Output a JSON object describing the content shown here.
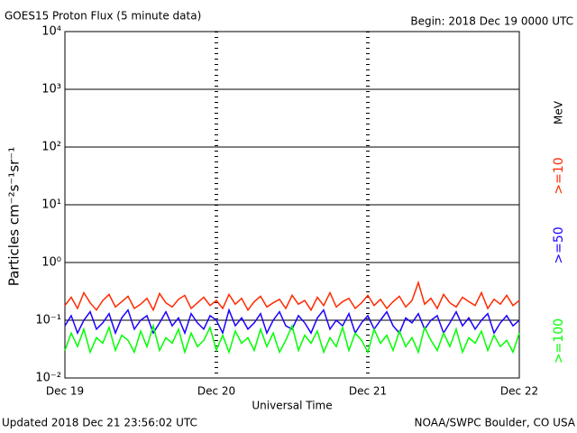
{
  "chart_data": {
    "type": "line",
    "title": "GOES15 Proton Flux (5 minute data)",
    "subtitle": "Begin: 2018 Dec 19 0000 UTC",
    "x_label": "Universal Time",
    "y_label": "Particles cm⁻²s⁻¹sr⁻¹",
    "legend_unit": "MeV",
    "footer_left": "Updated 2018 Dec 21 23:56:02 UTC",
    "footer_right": "NOAA/SWPC Boulder, CO USA",
    "log_y": true,
    "grid": true,
    "xlim": [
      0,
      72
    ],
    "xticks": [
      {
        "value": 0,
        "label": "Dec 19"
      },
      {
        "value": 24,
        "label": "Dec 20"
      },
      {
        "value": 48,
        "label": "Dec 21"
      },
      {
        "value": 72,
        "label": "Dec 22"
      }
    ],
    "ylim": [
      0.01,
      10000
    ],
    "yticks": [
      {
        "value": 0.01,
        "label": "10⁻²"
      },
      {
        "value": 0.1,
        "label": "10⁻¹"
      },
      {
        "value": 1,
        "label": "10⁰"
      },
      {
        "value": 10,
        "label": "10¹"
      },
      {
        "value": 100,
        "label": "10²"
      },
      {
        "value": 1000,
        "label": "10³"
      },
      {
        "value": 10000,
        "label": "10⁴"
      }
    ],
    "x": [
      0,
      1,
      2,
      3,
      4,
      5,
      6,
      7,
      8,
      9,
      10,
      11,
      12,
      13,
      14,
      15,
      16,
      17,
      18,
      19,
      20,
      21,
      22,
      23,
      24,
      25,
      26,
      27,
      28,
      29,
      30,
      31,
      32,
      33,
      34,
      35,
      36,
      37,
      38,
      39,
      40,
      41,
      42,
      43,
      44,
      45,
      46,
      47,
      48,
      49,
      50,
      51,
      52,
      53,
      54,
      55,
      56,
      57,
      58,
      59,
      60,
      61,
      62,
      63,
      64,
      65,
      66,
      67,
      68,
      69,
      70,
      71,
      72
    ],
    "series": [
      {
        "name": ">=10",
        "color": "#ff2a00",
        "values": [
          0.18,
          0.25,
          0.16,
          0.3,
          0.2,
          0.15,
          0.22,
          0.28,
          0.17,
          0.21,
          0.26,
          0.16,
          0.19,
          0.24,
          0.15,
          0.29,
          0.2,
          0.17,
          0.23,
          0.27,
          0.16,
          0.2,
          0.25,
          0.18,
          0.22,
          0.16,
          0.28,
          0.19,
          0.24,
          0.15,
          0.21,
          0.26,
          0.17,
          0.2,
          0.23,
          0.16,
          0.27,
          0.19,
          0.22,
          0.15,
          0.25,
          0.18,
          0.3,
          0.17,
          0.21,
          0.24,
          0.16,
          0.2,
          0.27,
          0.18,
          0.23,
          0.16,
          0.21,
          0.26,
          0.17,
          0.22,
          0.45,
          0.19,
          0.24,
          0.16,
          0.28,
          0.2,
          0.17,
          0.25,
          0.21,
          0.18,
          0.3,
          0.16,
          0.23,
          0.19,
          0.27,
          0.18,
          0.22
        ]
      },
      {
        "name": ">=50",
        "color": "#1a00ff",
        "values": [
          0.08,
          0.12,
          0.06,
          0.1,
          0.14,
          0.07,
          0.09,
          0.13,
          0.06,
          0.11,
          0.15,
          0.07,
          0.1,
          0.12,
          0.06,
          0.09,
          0.14,
          0.08,
          0.11,
          0.06,
          0.13,
          0.09,
          0.07,
          0.12,
          0.1,
          0.06,
          0.15,
          0.08,
          0.11,
          0.07,
          0.09,
          0.13,
          0.06,
          0.1,
          0.14,
          0.08,
          0.07,
          0.12,
          0.09,
          0.06,
          0.11,
          0.15,
          0.07,
          0.1,
          0.08,
          0.13,
          0.06,
          0.09,
          0.12,
          0.07,
          0.1,
          0.14,
          0.08,
          0.06,
          0.11,
          0.09,
          0.13,
          0.07,
          0.1,
          0.12,
          0.06,
          0.09,
          0.14,
          0.08,
          0.11,
          0.07,
          0.1,
          0.13,
          0.06,
          0.09,
          0.12,
          0.08,
          0.1
        ]
      },
      {
        "name": ">=100",
        "color": "#00ff00",
        "values": [
          0.03,
          0.06,
          0.035,
          0.07,
          0.028,
          0.05,
          0.04,
          0.075,
          0.03,
          0.055,
          0.045,
          0.028,
          0.065,
          0.035,
          0.08,
          0.03,
          0.05,
          0.04,
          0.07,
          0.028,
          0.06,
          0.035,
          0.045,
          0.075,
          0.03,
          0.055,
          0.028,
          0.065,
          0.04,
          0.05,
          0.03,
          0.07,
          0.035,
          0.06,
          0.028,
          0.045,
          0.08,
          0.03,
          0.055,
          0.04,
          0.065,
          0.028,
          0.05,
          0.035,
          0.075,
          0.03,
          0.06,
          0.045,
          0.028,
          0.07,
          0.04,
          0.055,
          0.03,
          0.065,
          0.035,
          0.05,
          0.028,
          0.075,
          0.045,
          0.03,
          0.06,
          0.035,
          0.07,
          0.028,
          0.05,
          0.04,
          0.065,
          0.03,
          0.055,
          0.035,
          0.045,
          0.028,
          0.06
        ]
      }
    ]
  }
}
